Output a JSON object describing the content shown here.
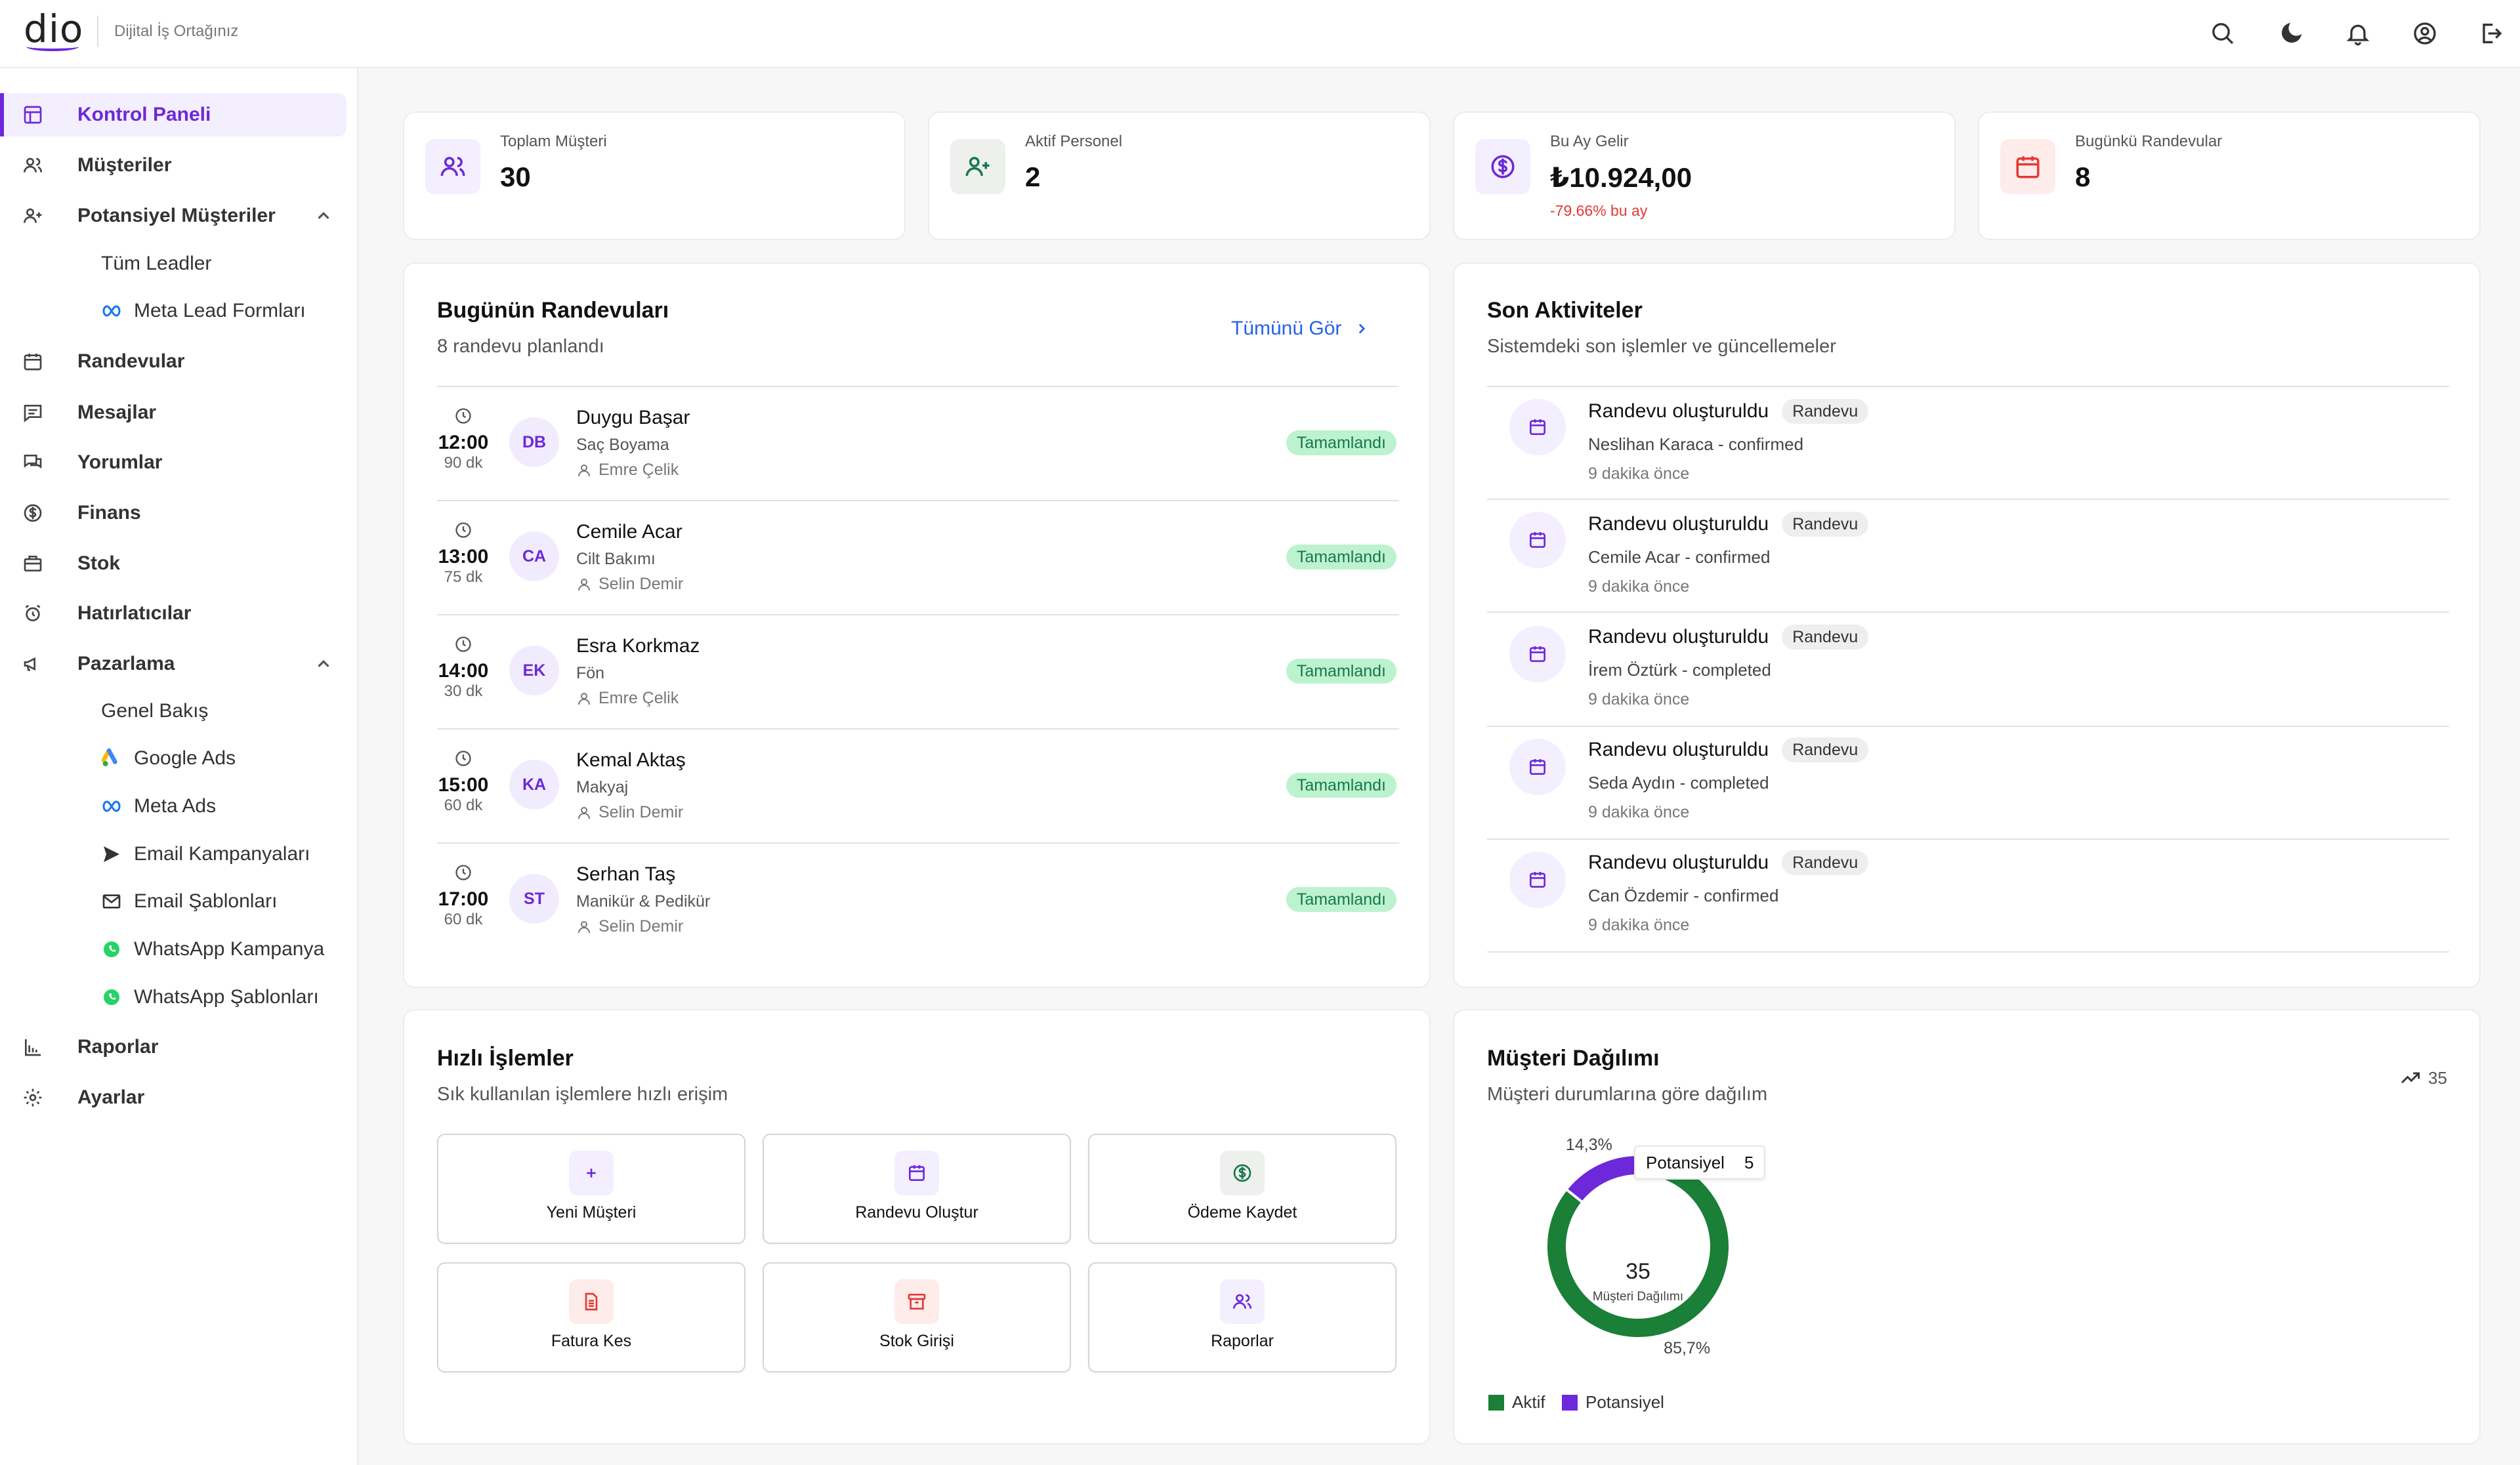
{
  "header": {
    "logo": "dio",
    "tagline": "Dijital İş Ortağınız",
    "icons": [
      "search-icon",
      "moon-icon",
      "bell-icon",
      "user-circle-icon",
      "logout-icon"
    ]
  },
  "sidebar": {
    "items": [
      {
        "label": "Kontrol Paneli",
        "icon": "dashboard-icon",
        "active": true
      },
      {
        "label": "Müşteriler",
        "icon": "users-icon"
      },
      {
        "label": "Potansiyel Müşteriler",
        "icon": "user-plus-icon",
        "expanded": true
      },
      {
        "label": "Randevular",
        "icon": "calendar-icon"
      },
      {
        "label": "Mesajlar",
        "icon": "message-icon"
      },
      {
        "label": "Yorumlar",
        "icon": "comments-icon"
      },
      {
        "label": "Finans",
        "icon": "dollar-icon"
      },
      {
        "label": "Stok",
        "icon": "box-icon"
      },
      {
        "label": "Hatırlatıcılar",
        "icon": "alarm-icon"
      },
      {
        "label": "Pazarlama",
        "icon": "megaphone-icon",
        "expanded": true
      },
      {
        "label": "Raporlar",
        "icon": "bar-chart-icon"
      },
      {
        "label": "Ayarlar",
        "icon": "gear-icon"
      }
    ],
    "leads_sub": [
      {
        "label": "Tüm Leadler"
      },
      {
        "label": "Meta Lead Formları",
        "icon": "meta-icon"
      }
    ],
    "marketing_sub": [
      {
        "label": "Genel Bakış"
      },
      {
        "label": "Google Ads",
        "icon": "google-ads-icon"
      },
      {
        "label": "Meta Ads",
        "icon": "meta-icon"
      },
      {
        "label": "Email Kampanyaları",
        "icon": "send-icon"
      },
      {
        "label": "Email Şablonları",
        "icon": "mail-icon"
      },
      {
        "label": "WhatsApp Kampanya",
        "icon": "whatsapp-icon"
      },
      {
        "label": "WhatsApp Şablonları",
        "icon": "whatsapp-icon"
      }
    ]
  },
  "stats": [
    {
      "label": "Toplam Müşteri",
      "value": "30",
      "icon": "users-icon",
      "color": "#6d28d9",
      "bg": "#f3efff"
    },
    {
      "label": "Aktif Personel",
      "value": "2",
      "icon": "user-plus-icon",
      "color": "#16794a",
      "bg": "#eef0ee"
    },
    {
      "label": "Bu Ay Gelir",
      "value": "₺10.924,00",
      "sub": "-79.66% bu ay",
      "icon": "dollar-icon",
      "color": "#6d28d9",
      "bg": "#f3efff"
    },
    {
      "label": "Bugünkü Randevular",
      "value": "8",
      "icon": "calendar-icon",
      "color": "#e53935",
      "bg": "#fdecea"
    }
  ],
  "appointments": {
    "title": "Bugünün Randevuları",
    "subtitle": "8 randevu planlandı",
    "view_all": "Tümünü Gör",
    "items": [
      {
        "time": "12:00",
        "duration": "90 dk",
        "initials": "DB",
        "name": "Duygu Başar",
        "service": "Saç Boyama",
        "staff": "Emre Çelik",
        "status": "Tamamlandı"
      },
      {
        "time": "13:00",
        "duration": "75 dk",
        "initials": "CA",
        "name": "Cemile Acar",
        "service": "Cilt Bakımı",
        "staff": "Selin Demir",
        "status": "Tamamlandı"
      },
      {
        "time": "14:00",
        "duration": "30 dk",
        "initials": "EK",
        "name": "Esra Korkmaz",
        "service": "Fön",
        "staff": "Emre Çelik",
        "status": "Tamamlandı"
      },
      {
        "time": "15:00",
        "duration": "60 dk",
        "initials": "KA",
        "name": "Kemal Aktaş",
        "service": "Makyaj",
        "staff": "Selin Demir",
        "status": "Tamamlandı"
      },
      {
        "time": "17:00",
        "duration": "60 dk",
        "initials": "ST",
        "name": "Serhan Taş",
        "service": "Manikür & Pedikür",
        "staff": "Selin Demir",
        "status": "Tamamlandı"
      }
    ]
  },
  "activities": {
    "title": "Son Aktiviteler",
    "subtitle": "Sistemdeki son işlemler ve güncellemeler",
    "items": [
      {
        "title": "Randevu oluşturuldu",
        "tag": "Randevu",
        "desc": "Neslihan Karaca - confirmed",
        "time": "9 dakika önce"
      },
      {
        "title": "Randevu oluşturuldu",
        "tag": "Randevu",
        "desc": "Cemile Acar - confirmed",
        "time": "9 dakika önce"
      },
      {
        "title": "Randevu oluşturuldu",
        "tag": "Randevu",
        "desc": "İrem Öztürk - completed",
        "time": "9 dakika önce"
      },
      {
        "title": "Randevu oluşturuldu",
        "tag": "Randevu",
        "desc": "Seda Aydın - completed",
        "time": "9 dakika önce"
      },
      {
        "title": "Randevu oluşturuldu",
        "tag": "Randevu",
        "desc": "Can Özdemir - confirmed",
        "time": "9 dakika önce"
      }
    ]
  },
  "quick_actions": {
    "title": "Hızlı İşlemler",
    "subtitle": "Sık kullanılan işlemlere hızlı erişim",
    "items": [
      {
        "label": "Yeni Müşteri",
        "icon": "plus-icon",
        "color": "#6d28d9",
        "bg": "#f3efff"
      },
      {
        "label": "Randevu Oluştur",
        "icon": "calendar-icon",
        "color": "#6d28d9",
        "bg": "#f3efff"
      },
      {
        "label": "Ödeme Kaydet",
        "icon": "dollar-icon",
        "color": "#16794a",
        "bg": "#eef0ee"
      },
      {
        "label": "Fatura Kes",
        "icon": "file-icon",
        "color": "#e53935",
        "bg": "#fdecea"
      },
      {
        "label": "Stok Girişi",
        "icon": "archive-icon",
        "color": "#e53935",
        "bg": "#fdecea"
      },
      {
        "label": "Raporlar",
        "icon": "users-icon",
        "color": "#6d28d9",
        "bg": "#f3efff"
      }
    ]
  },
  "distribution": {
    "title": "Müşteri Dağılımı",
    "subtitle": "Müşteri durumlarına göre dağılım",
    "trend_value": "35",
    "center_value": "35",
    "center_label": "Müşteri Dağılımı",
    "tooltip_label": "Potansiyel",
    "tooltip_value": "5",
    "chart_data": {
      "type": "pie",
      "title": "Müşteri Dağılımı",
      "categories": [
        "Aktif",
        "Potansiyel"
      ],
      "values": [
        30,
        5
      ],
      "percent_labels": [
        "85,7%",
        "14,3%"
      ],
      "colors": [
        "#1a7f37",
        "#6d28d9"
      ],
      "legend_position": "bottom-left"
    }
  }
}
